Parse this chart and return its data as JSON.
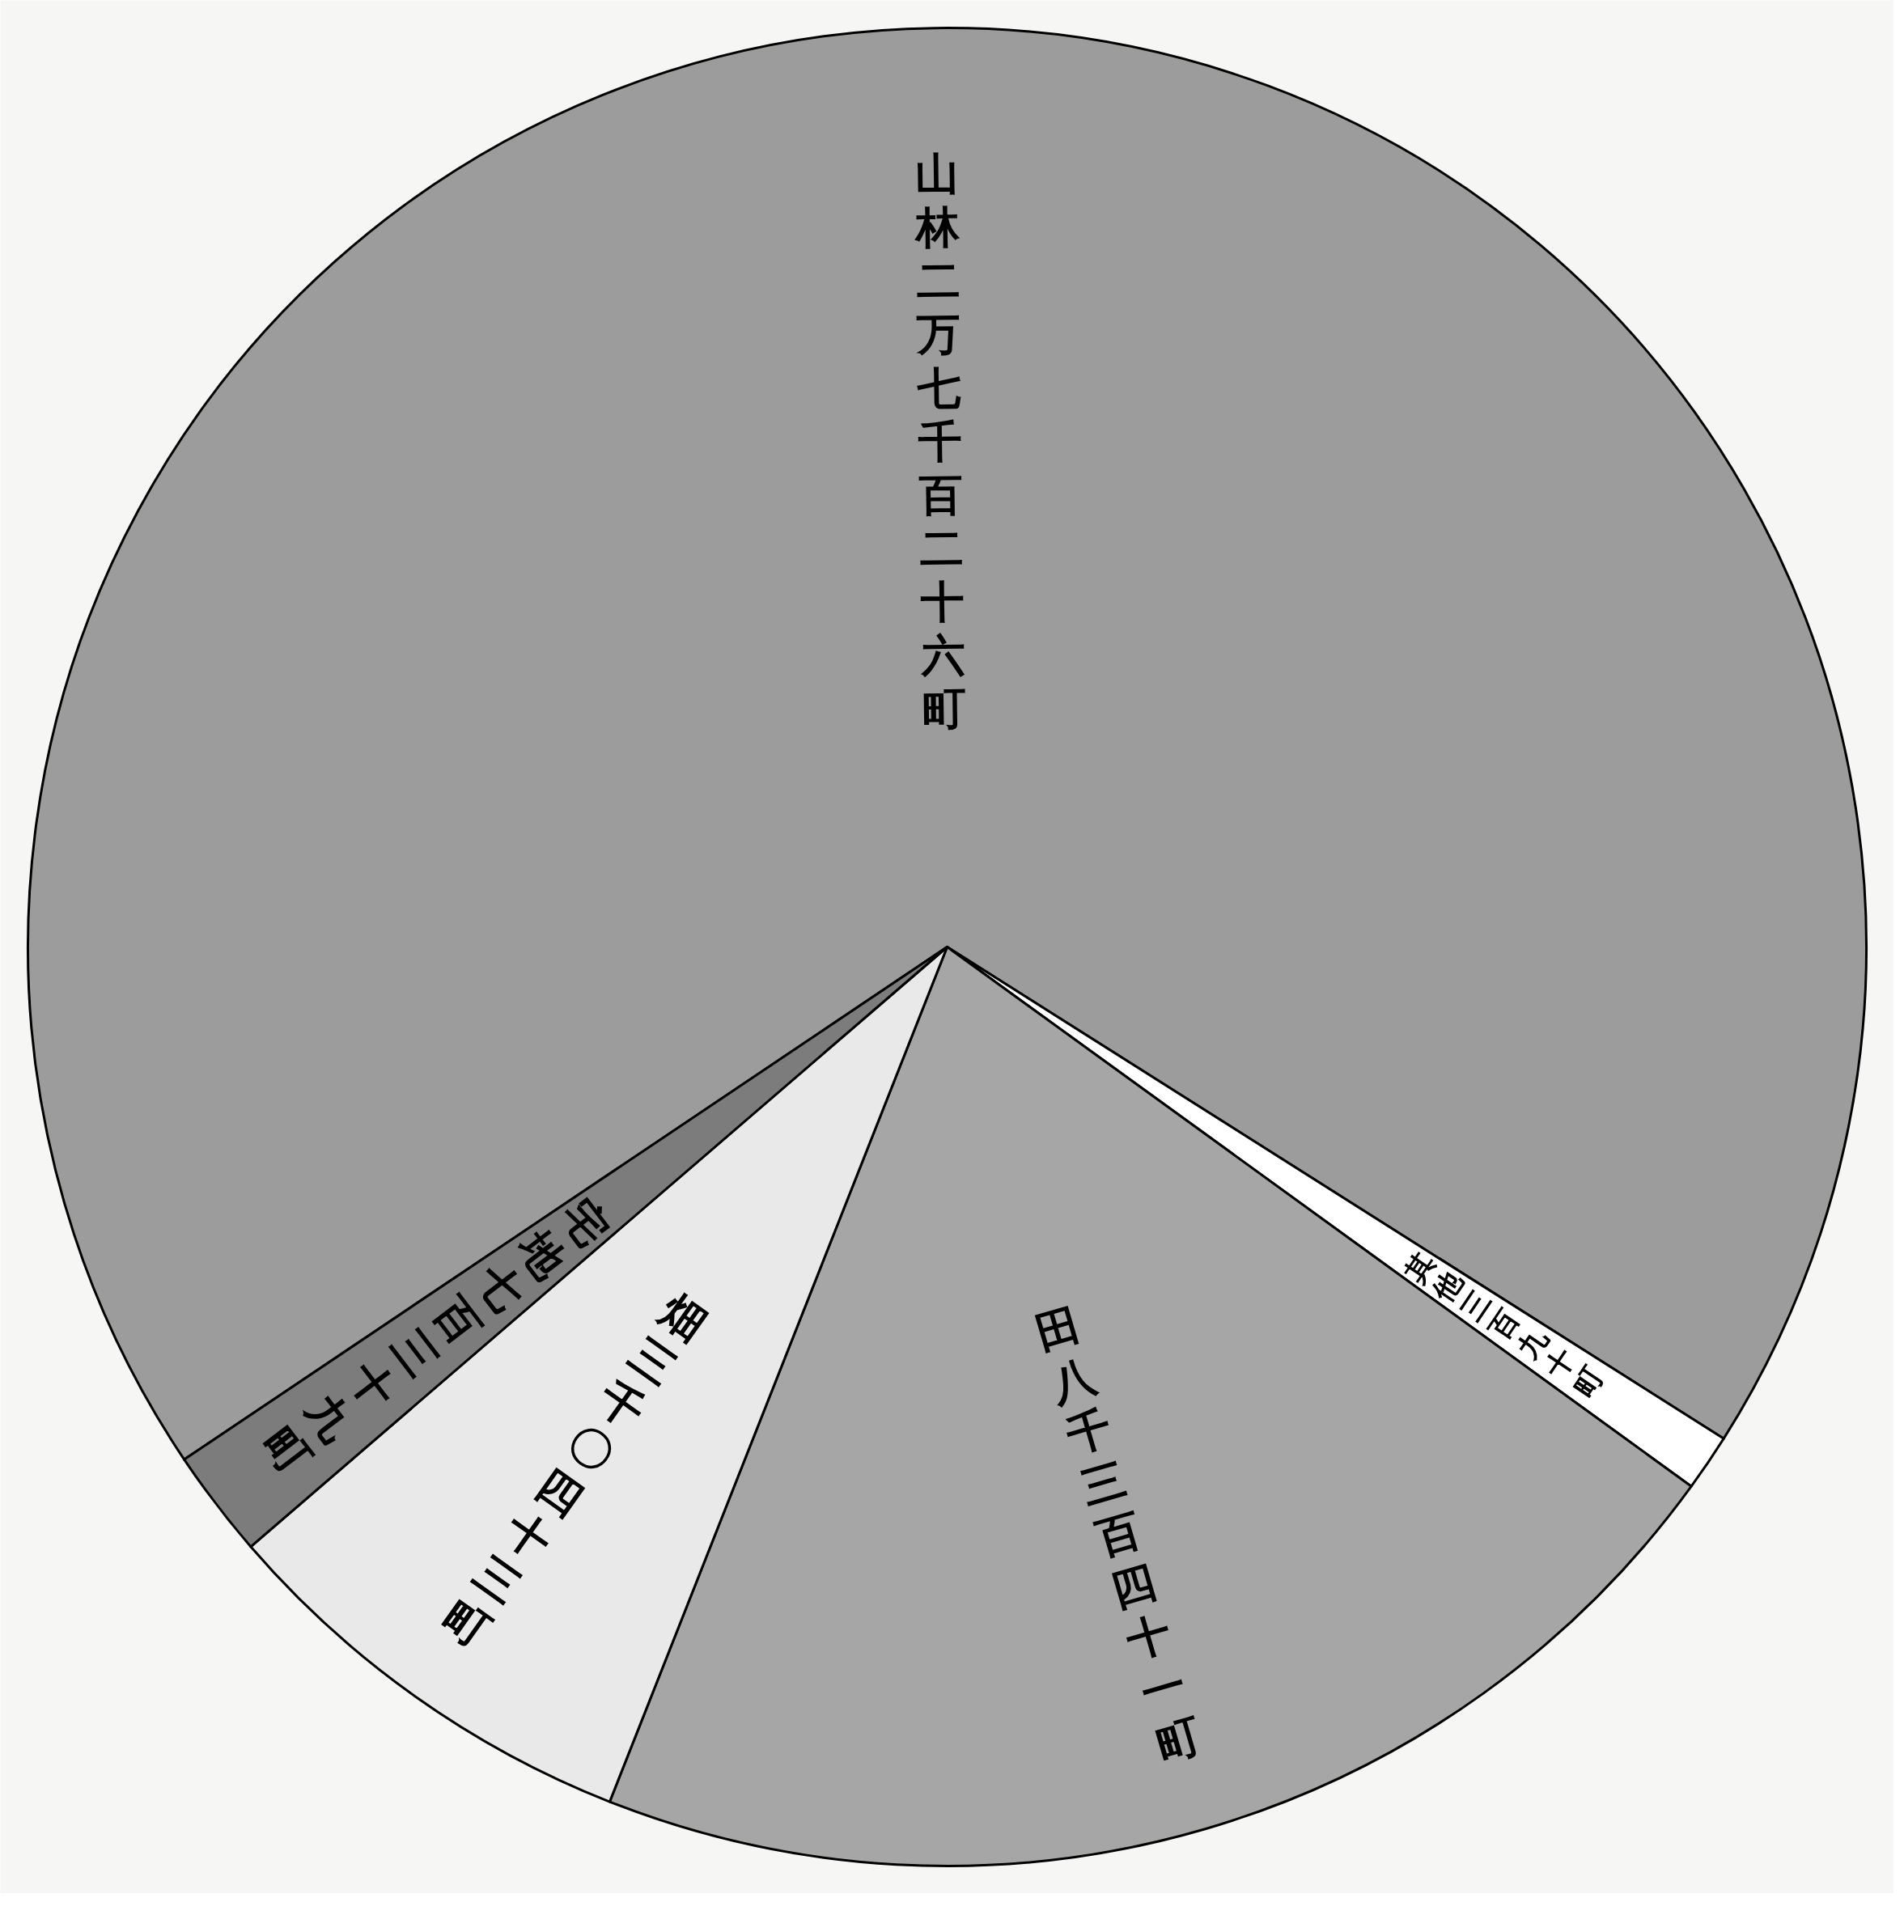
{
  "chart_data": {
    "type": "pie",
    "categories": [
      "山林",
      "其他",
      "田",
      "畑",
      "宅地"
    ],
    "values": [
      68.4,
      1.0,
      21.0,
      7.7,
      1.9
    ],
    "value_labels": [
      "二万七千百二十六町",
      "三百九十町",
      "八千三百四十一町",
      "三千〇四十三町",
      "七百三十九町"
    ],
    "colors": [
      "#9c9c9c",
      "#ffffff",
      "#a6a6a6",
      "#e9e9e9",
      "#7c7c7c"
    ]
  }
}
